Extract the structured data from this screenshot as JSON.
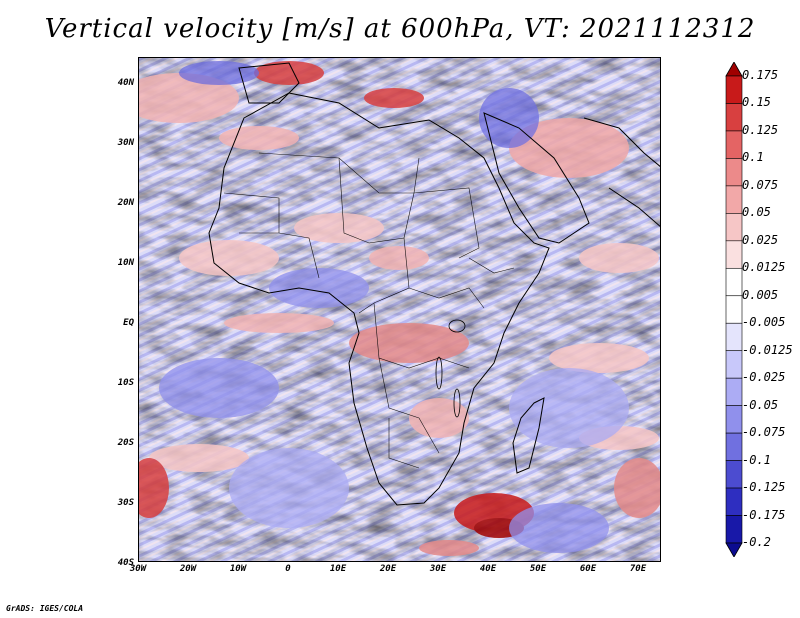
{
  "title": "Vertical velocity [m/s] at 600hPa, VT: 2021112312",
  "footer": "GrADS: IGES/COLA",
  "map": {
    "lat_labels": [
      "40N",
      "30N",
      "20N",
      "10N",
      "EQ",
      "10S",
      "20S",
      "30S",
      "40S"
    ],
    "lon_labels": [
      "30W",
      "20W",
      "10W",
      "0",
      "10E",
      "20E",
      "30E",
      "40E",
      "50E",
      "60E",
      "70E"
    ],
    "lon_range": [
      -30,
      75
    ],
    "lat_range": [
      -40,
      45
    ],
    "colors": {
      "strong_up": "#b80000",
      "mid_up": "#e89090",
      "weak_up": "#f8d8d8",
      "weak_down": "#d8d8f8",
      "mid_down": "#9090ec",
      "strong_down": "#2020c0",
      "land_line": "#000000"
    }
  },
  "colorbar": {
    "levels": [
      "0.175",
      "0.15",
      "0.125",
      "0.1",
      "0.075",
      "0.05",
      "0.025",
      "0.0125",
      "0.005",
      "-0.005",
      "-0.0125",
      "-0.025",
      "-0.05",
      "-0.075",
      "-0.1",
      "-0.125",
      "-0.175",
      "-0.2"
    ],
    "colors": [
      "#a00000",
      "#c81a1a",
      "#d84040",
      "#e46464",
      "#ec8a8a",
      "#f2a8a8",
      "#f6c6c6",
      "#fae0e0",
      "#ffffff",
      "#ffffff",
      "#e4e4fc",
      "#c8c8fa",
      "#acacf4",
      "#9090ec",
      "#7070e0",
      "#4c4cd0",
      "#2e2ec0",
      "#1818a8",
      "#0c0c90"
    ]
  }
}
